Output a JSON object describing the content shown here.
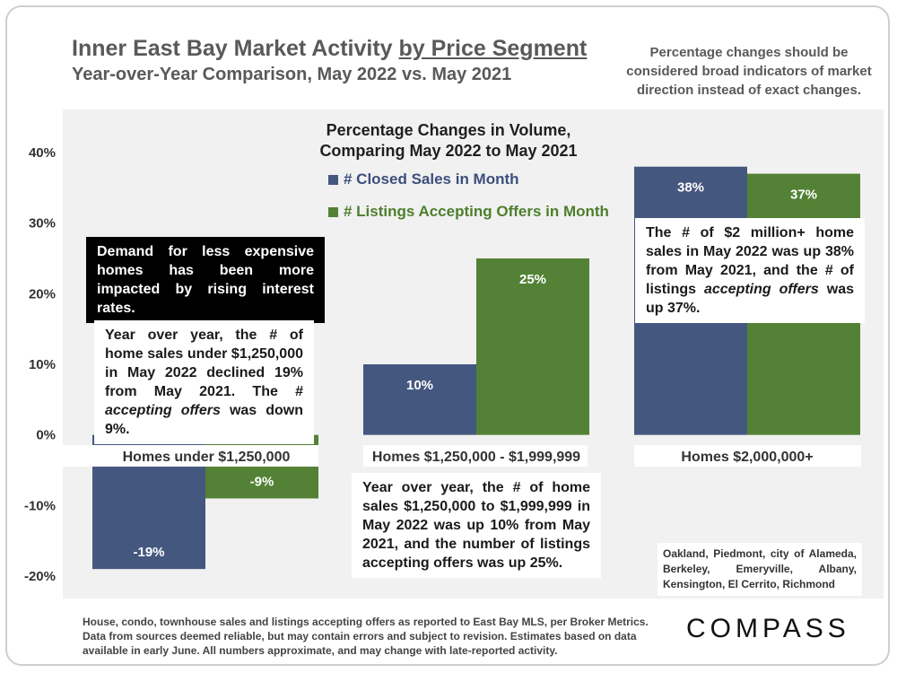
{
  "header": {
    "title_main": "Inner East Bay Market Activity ",
    "title_accent": "by Price Segment",
    "title_sub": "Year-over-Year Comparison, May 2022 vs. May 2021",
    "caveat": "Percentage changes should be considered broad indicators of market direction instead of exact changes."
  },
  "chart_data": {
    "type": "bar",
    "title": "Percentage Changes in Volume, Comparing May 2022 to May 2021",
    "categories": [
      "Homes under $1,250,000",
      "Homes $1,250,000 - $1,999,999",
      "Homes $2,000,000+"
    ],
    "series": [
      {
        "name": "# Closed Sales in Month",
        "values": [
          -19,
          10,
          38
        ],
        "labels": [
          "-19%",
          "10%",
          "38%"
        ],
        "color": "#44577f"
      },
      {
        "name": "# Listings Accepting Offers in Month",
        "values": [
          -9,
          25,
          37
        ],
        "labels": [
          "-9%",
          "25%",
          "37%"
        ],
        "color": "#538135"
      }
    ],
    "ylim": [
      -20,
      40
    ],
    "yticks": [
      40,
      30,
      20,
      10,
      0,
      -10,
      -20
    ],
    "ytick_labels": [
      "40%",
      "30%",
      "20%",
      "10%",
      "0%",
      "-10%",
      "-20%"
    ],
    "xlabel": "",
    "ylabel": ""
  },
  "annotations": {
    "demand": "Demand for less expensive homes has been more impacted by rising interest rates.",
    "low_pre": "Year over year, the # of home sales under $1,250,000 in May 2022 declined 19% from May 2021. The # ",
    "low_em": "accepting offers",
    "low_post": " was down 9%.",
    "mid": "Year over year, the # of home sales $1,250,000 to $1,999,999 in May 2022 was up 10% from May 2021, and the number of listings accepting offers was up 25%.",
    "high_pre": "The # of $2 million+ home sales in May 2022 was up 38% from May 2021, and the # of listings ",
    "high_em": "accepting offers",
    "high_post": " was up 37%."
  },
  "cities": "Oakland, Piedmont, city of Alameda, Berkeley, Emeryville, Albany, Kensington, El Cerrito, Richmond",
  "footnote": "House, condo, townhouse sales and listings accepting offers as reported to East Bay MLS, per Broker Metrics. Data from sources deemed reliable, but may contain errors and subject to revision. Estimates based on data available in early June. All numbers approximate, and may change with late-reported activity.",
  "logo": "COMPASS"
}
